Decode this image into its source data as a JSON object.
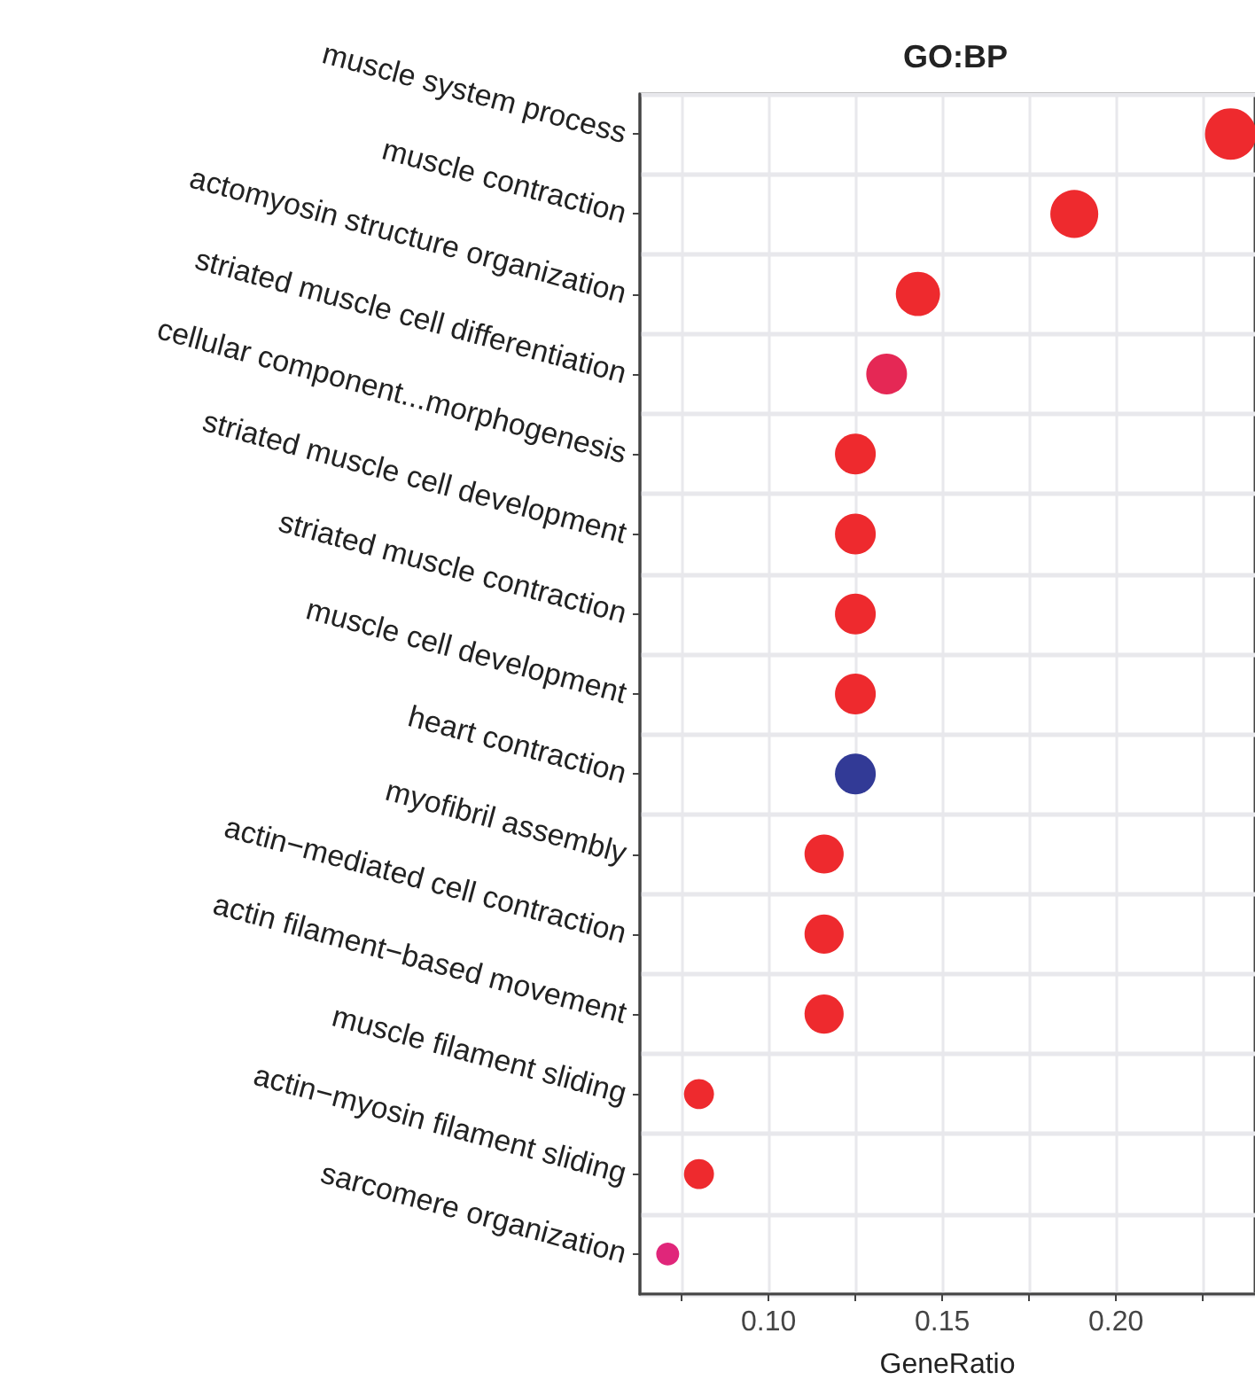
{
  "chart_data": {
    "type": "scatter",
    "title": "GO:BP",
    "xlabel": "GeneRatio",
    "categories": [
      "muscle system process",
      "muscle contraction",
      "actomyosin structure organization",
      "striated muscle cell differentiation",
      "cellular component...morphogenesis",
      "striated muscle cell development",
      "striated muscle contraction",
      "muscle cell development",
      "heart contraction",
      "myofibril assembly",
      "actin−mediated cell contraction",
      "actin filament−based movement",
      "muscle filament sliding",
      "actin−myosin filament sliding",
      "sarcomere organization"
    ],
    "values": [
      0.233,
      0.188,
      0.143,
      0.134,
      0.125,
      0.125,
      0.125,
      0.125,
      0.125,
      0.116,
      0.116,
      0.116,
      0.08,
      0.08,
      0.071
    ],
    "sizes": [
      1,
      0.87,
      0.74,
      0.63,
      0.63,
      0.63,
      0.63,
      0.63,
      0.63,
      0.58,
      0.58,
      0.58,
      0.34,
      0.34,
      0.2
    ],
    "colors": [
      "#ee2a2e",
      "#ee2a2e",
      "#ee2a2e",
      "#e52855",
      "#ee2a2e",
      "#ee2a2e",
      "#ee2a2e",
      "#ee2a2e",
      "#323a96",
      "#ee2a2e",
      "#ee2a2e",
      "#ee2a2e",
      "#ee2a2e",
      "#ee2a2e",
      "#e0267a"
    ],
    "orientation": "horizontal",
    "xlim": [
      0.063,
      0.24
    ],
    "xticks": [
      {
        "value": 0.075,
        "label": null
      },
      {
        "value": 0.1,
        "label": "0.10"
      },
      {
        "value": 0.125,
        "label": null
      },
      0.15,
      {
        "value": 0.175,
        "label": null
      },
      {
        "value": 0.2,
        "label": "0.20"
      },
      {
        "value": 0.225,
        "label": null
      }
    ],
    "grid": true,
    "marker": "circle"
  }
}
